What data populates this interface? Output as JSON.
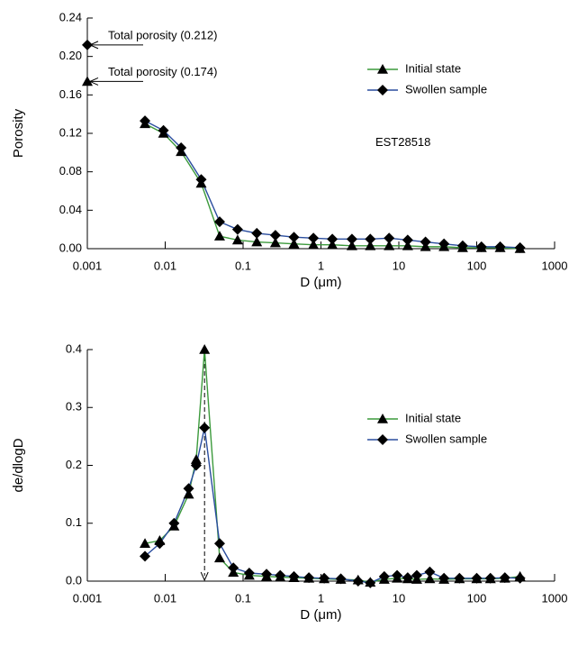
{
  "chart_data": [
    {
      "type": "line",
      "xscale": "log",
      "xlabel": "D (μm)",
      "ylabel": "Porosity",
      "legend": "upper right",
      "x": [
        0.0055,
        0.0095,
        0.016,
        0.029,
        0.05,
        0.085,
        0.15,
        0.26,
        0.45,
        0.8,
        1.4,
        2.5,
        4.3,
        7.5,
        13,
        22,
        38,
        66,
        115,
        200,
        360
      ],
      "series": [
        {
          "name": "Initial state",
          "color": "#3c9a3c",
          "marker": "triangle",
          "values": [
            0.13,
            0.12,
            0.101,
            0.068,
            0.013,
            0.009,
            0.007,
            0.006,
            0.005,
            0.004,
            0.004,
            0.003,
            0.003,
            0.003,
            0.003,
            0.002,
            0.002,
            0.001,
            0.001,
            0.001,
            0.0
          ]
        },
        {
          "name": "Swollen sample",
          "color": "#2a4d9e",
          "marker": "diamond",
          "values": [
            0.133,
            0.123,
            0.105,
            0.072,
            0.028,
            0.02,
            0.016,
            0.014,
            0.012,
            0.011,
            0.01,
            0.01,
            0.01,
            0.011,
            0.009,
            0.007,
            0.005,
            0.003,
            0.002,
            0.002,
            0.001
          ]
        }
      ],
      "annotations": [
        {
          "text": "Total porosity (0.212)",
          "x": 0.001,
          "y": 0.212,
          "marker": "diamond"
        },
        {
          "text": "Total porosity (0.174)",
          "x": 0.001,
          "y": 0.174,
          "marker": "triangle"
        }
      ],
      "notes": [
        {
          "text": "EST28518",
          "x": 5,
          "y": 0.11
        }
      ],
      "xlim": [
        0.001,
        1000
      ],
      "xticks": [
        0.001,
        0.01,
        0.1,
        1,
        10,
        100,
        1000
      ],
      "ylim": [
        0,
        0.24
      ],
      "yticks": [
        {
          "value": 0,
          "label": "0.00"
        },
        {
          "value": 0.04,
          "label": "0.04"
        },
        {
          "value": 0.08,
          "label": "0.08"
        },
        {
          "value": 0.12,
          "label": "0.12"
        },
        {
          "value": 0.16,
          "label": "0.16"
        },
        {
          "value": 0.2,
          "label": "0.20"
        },
        {
          "value": 0.24,
          "label": "0.24"
        }
      ]
    },
    {
      "type": "line",
      "xscale": "log",
      "xlabel": "D (μm)",
      "ylabel": "de/dlogD",
      "legend": "center right",
      "x": [
        0.0055,
        0.0085,
        0.013,
        0.02,
        0.025,
        0.032,
        0.05,
        0.075,
        0.12,
        0.2,
        0.3,
        0.45,
        0.7,
        1.1,
        1.8,
        3,
        4.3,
        6.5,
        9.5,
        13,
        17,
        25,
        38,
        60,
        100,
        150,
        230,
        360
      ],
      "series": [
        {
          "name": "Initial state",
          "color": "#3c9a3c",
          "marker": "triangle",
          "values": [
            0.065,
            0.07,
            0.095,
            0.15,
            0.21,
            0.4,
            0.04,
            0.015,
            0.01,
            0.008,
            0.007,
            0.006,
            0.005,
            0.004,
            0.003,
            0.002,
            -0.002,
            0.003,
            0.005,
            0.004,
            0.003,
            0.004,
            0.003,
            0.004,
            0.004,
            0.004,
            0.005,
            0.008
          ]
        },
        {
          "name": "Swollen sample",
          "color": "#2a4d9e",
          "marker": "diamond",
          "values": [
            0.043,
            0.065,
            0.1,
            0.16,
            0.2,
            0.265,
            0.065,
            0.023,
            0.014,
            0.012,
            0.01,
            0.008,
            0.006,
            0.005,
            0.004,
            0.0,
            -0.003,
            0.008,
            0.01,
            0.006,
            0.01,
            0.016,
            0.005,
            0.005,
            0.005,
            0.005,
            0.006,
            0.005
          ]
        }
      ],
      "xlim": [
        0.001,
        1000
      ],
      "xticks": [
        0.001,
        0.01,
        0.1,
        1,
        10,
        100,
        1000
      ],
      "ylim": [
        0,
        0.4
      ],
      "yticks": [
        {
          "value": 0,
          "label": "0.0"
        },
        0.1,
        0.2,
        0.3,
        0.4
      ]
    }
  ]
}
